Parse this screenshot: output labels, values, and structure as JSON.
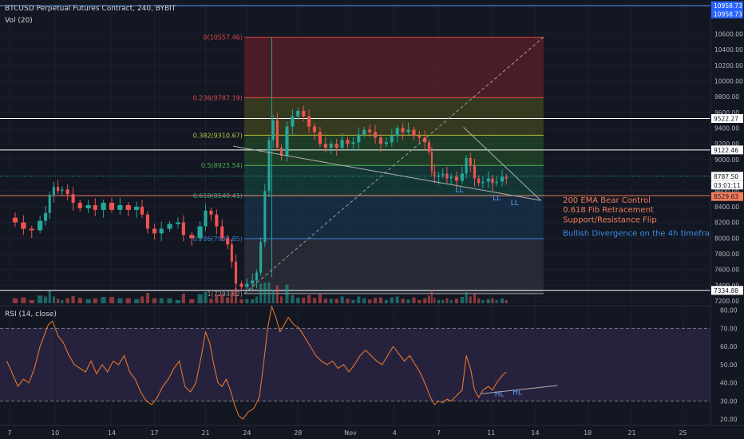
{
  "header": {
    "title": "BTCUSD Perpetual Futures Contract, 240, BYBIT",
    "volume_label": "Vol (20)",
    "rsi_label": "RSI (14, close)"
  },
  "chart_data": {
    "type": "candlestick",
    "price_axis": {
      "min": 7150,
      "max": 10980,
      "ticks": [
        7200,
        7400,
        7600,
        7800,
        8000,
        8200,
        8400,
        8600,
        8800,
        9000,
        9200,
        9400,
        9600,
        9800,
        10000,
        10200,
        10400,
        10600
      ]
    },
    "rsi_axis": {
      "min": 17,
      "max": 82,
      "ticks": [
        20,
        30,
        40,
        50,
        60,
        70,
        80
      ],
      "overbought": 70,
      "oversold": 30
    },
    "x_axis": {
      "labels": [
        {
          "text": "7",
          "t": 0.2
        },
        {
          "text": "10",
          "t": 3.5
        },
        {
          "text": "14",
          "t": 7.6
        },
        {
          "text": "17",
          "t": 10.7
        },
        {
          "text": "21",
          "t": 14.4
        },
        {
          "text": "24",
          "t": 17.4
        },
        {
          "text": "28",
          "t": 21.1
        },
        {
          "text": "Nov",
          "t": 24.9
        },
        {
          "text": "4",
          "t": 28.1
        },
        {
          "text": "7",
          "t": 31.3
        },
        {
          "text": "11",
          "t": 35.1
        },
        {
          "text": "14",
          "t": 38.3
        },
        {
          "text": "18",
          "t": 42.1
        },
        {
          "text": "21",
          "t": 45.3
        },
        {
          "text": "25",
          "t": 49.0
        }
      ]
    },
    "horizontal_levels": [
      {
        "price": 10958.73,
        "label": "10958.73",
        "color": "#5b9cf6"
      },
      {
        "price": 9522.27,
        "label": "9522.27",
        "color": "#ffffff"
      },
      {
        "price": 9122.46,
        "label": "9122.46",
        "color": "#ffffff"
      },
      {
        "price": 7334.88,
        "label": "7334.88",
        "color": "#ffffff"
      }
    ],
    "price_markers": [
      {
        "price": 8787.5,
        "label": "8787.50",
        "bg": "#ffffff",
        "fg": "#131722"
      },
      {
        "price": 8630,
        "label": "03:01:11",
        "bg": "#ffffff",
        "fg": "#131722"
      },
      {
        "price": 8529.63,
        "label": "8529.63",
        "bg": "#f57c5a",
        "fg": "#131722"
      }
    ],
    "fibonacci": {
      "start_t": 17.2,
      "end_t": 38.9,
      "levels": [
        {
          "ratio": "0",
          "price": 10557.46,
          "label": "0(10557.46)",
          "color": "#e04848",
          "fill": "rgba(120,32,40,0.55)"
        },
        {
          "ratio": "0.236",
          "price": 9787.19,
          "label": "0.236(9787.19)",
          "color": "#e04848",
          "fill": "rgba(80,85,30,0.55)"
        },
        {
          "ratio": "0.382",
          "price": 9310.67,
          "label": "0.382(9310.67)",
          "color": "#b8c23a",
          "fill": "rgba(40,90,40,0.55)"
        },
        {
          "ratio": "0.5",
          "price": 8925.54,
          "label": "0.5(8925.54)",
          "color": "#4caf50",
          "fill": "rgba(20,80,70,0.55)"
        },
        {
          "ratio": "0.618",
          "price": 8540.41,
          "label": "0.618(8540.41)",
          "color": "#26a69a",
          "fill": "rgba(25,60,90,0.55)"
        },
        {
          "ratio": "0.786",
          "price": 7992.85,
          "label": "0.786(7992.85)",
          "color": "#3a7bd5",
          "fill": "rgba(55,58,70,0.55)"
        },
        {
          "ratio": "1",
          "price": 7293.62,
          "label": "1(7293.62)",
          "color": "#9e9e9e",
          "fill": "none"
        }
      ]
    },
    "ema_line": {
      "price": 8540.41,
      "color": "#f57c5a"
    },
    "trendlines": [
      {
        "kind": "support",
        "t1": 16.4,
        "p1": 9170,
        "t2": 38.7,
        "p2": 8480,
        "color": "#b0b0b0",
        "style": "solid"
      },
      {
        "kind": "wedge-top",
        "t1": 33.1,
        "p1": 9410,
        "t2": 38.7,
        "p2": 8480,
        "color": "#b0b0b0",
        "style": "solid"
      },
      {
        "kind": "fib-diagonal",
        "t1": 17.2,
        "p1": 7293.62,
        "t2": 38.9,
        "p2": 10557.46,
        "color": "#9e9e9e",
        "style": "dashed"
      }
    ],
    "rsi_trendline": {
      "t1": 34.4,
      "r1": 34,
      "t2": 39.9,
      "r2": 38.5,
      "color": "#b0b0b0"
    },
    "annotations": [
      {
        "text": "LL",
        "t": 32.8,
        "price": 8580,
        "panel": "price",
        "color": "#5b9cf6"
      },
      {
        "text": "LL",
        "t": 35.5,
        "price": 8480,
        "panel": "price",
        "color": "#5b9cf6"
      },
      {
        "text": "LL",
        "t": 36.8,
        "price": 8420,
        "panel": "price",
        "color": "#5b9cf6"
      },
      {
        "text": "HL",
        "t": 35.7,
        "value": 32.5,
        "panel": "rsi",
        "color": "#5b9cf6"
      },
      {
        "text": "HL",
        "t": 37.0,
        "value": 33.5,
        "panel": "rsi",
        "color": "#5b9cf6"
      }
    ],
    "notes": [
      {
        "text": "200 EMA Bear Control",
        "t": 40.3,
        "price": 8450,
        "color": "#f57c5a"
      },
      {
        "text": "0.618 Fib Retracement",
        "t": 40.3,
        "price": 8330,
        "color": "#f57c5a"
      },
      {
        "text": "Support/Resistance Flip",
        "t": 40.3,
        "price": 8200,
        "color": "#f57c5a"
      },
      {
        "text": "Bullish Divergence on the 4h timefra",
        "t": 40.3,
        "price": 8030,
        "color": "#3a8ee6"
      }
    ],
    "series": [
      {
        "name": "",
        "kind": "price-close",
        "points": [
          [
            0.0,
            8260
          ],
          [
            0.6,
            8200
          ],
          [
            1.2,
            8120
          ],
          [
            1.8,
            8100
          ],
          [
            2.4,
            8220
          ],
          [
            2.8,
            8320
          ],
          [
            3.1,
            8550
          ],
          [
            3.4,
            8650
          ],
          [
            3.7,
            8600
          ],
          [
            4.0,
            8620
          ],
          [
            4.4,
            8560
          ],
          [
            4.8,
            8450
          ],
          [
            5.3,
            8380
          ],
          [
            5.9,
            8420
          ],
          [
            6.4,
            8360
          ],
          [
            7.0,
            8450
          ],
          [
            7.6,
            8360
          ],
          [
            8.2,
            8420
          ],
          [
            8.8,
            8360
          ],
          [
            9.4,
            8400
          ],
          [
            9.8,
            8300
          ],
          [
            10.2,
            8120
          ],
          [
            10.7,
            8060
          ],
          [
            11.2,
            8120
          ],
          [
            11.8,
            8180
          ],
          [
            12.4,
            8200
          ],
          [
            12.8,
            8040
          ],
          [
            13.4,
            8000
          ],
          [
            14.0,
            8150
          ],
          [
            14.4,
            8350
          ],
          [
            14.8,
            8300
          ],
          [
            15.2,
            8150
          ],
          [
            15.6,
            8000
          ],
          [
            16.0,
            7920
          ],
          [
            16.3,
            7700
          ],
          [
            16.6,
            7420
          ],
          [
            17.0,
            7380
          ],
          [
            17.4,
            7420
          ],
          [
            17.8,
            7460
          ],
          [
            18.1,
            7560
          ],
          [
            18.4,
            7950
          ],
          [
            18.7,
            8600
          ],
          [
            19.0,
            9250
          ],
          [
            19.3,
            9500
          ],
          [
            19.6,
            9150
          ],
          [
            19.9,
            9050
          ],
          [
            20.3,
            9420
          ],
          [
            20.7,
            9550
          ],
          [
            21.1,
            9620
          ],
          [
            21.5,
            9550
          ],
          [
            21.9,
            9420
          ],
          [
            22.3,
            9350
          ],
          [
            22.7,
            9200
          ],
          [
            23.1,
            9150
          ],
          [
            23.5,
            9200
          ],
          [
            23.9,
            9150
          ],
          [
            24.3,
            9250
          ],
          [
            24.7,
            9200
          ],
          [
            25.1,
            9220
          ],
          [
            25.5,
            9320
          ],
          [
            25.9,
            9380
          ],
          [
            26.3,
            9350
          ],
          [
            26.7,
            9280
          ],
          [
            27.1,
            9200
          ],
          [
            27.5,
            9220
          ],
          [
            27.9,
            9300
          ],
          [
            28.3,
            9400
          ],
          [
            28.7,
            9350
          ],
          [
            29.1,
            9380
          ],
          [
            29.5,
            9300
          ],
          [
            29.9,
            9280
          ],
          [
            30.3,
            9220
          ],
          [
            30.6,
            9100
          ],
          [
            30.8,
            8850
          ],
          [
            31.0,
            8780
          ],
          [
            31.3,
            8800
          ],
          [
            31.6,
            8820
          ],
          [
            31.9,
            8760
          ],
          [
            32.2,
            8780
          ],
          [
            32.6,
            8730
          ],
          [
            33.0,
            8820
          ],
          [
            33.3,
            9020
          ],
          [
            33.6,
            8920
          ],
          [
            33.9,
            8760
          ],
          [
            34.2,
            8700
          ],
          [
            34.5,
            8720
          ],
          [
            34.9,
            8760
          ],
          [
            35.2,
            8700
          ],
          [
            35.5,
            8720
          ],
          [
            35.9,
            8780
          ],
          [
            36.2,
            8760
          ]
        ]
      },
      {
        "name": "",
        "kind": "rsi",
        "points": [
          [
            0.0,
            52
          ],
          [
            0.4,
            45
          ],
          [
            0.8,
            38
          ],
          [
            1.2,
            42
          ],
          [
            1.6,
            40
          ],
          [
            2.0,
            48
          ],
          [
            2.4,
            60
          ],
          [
            2.7,
            66
          ],
          [
            3.0,
            72
          ],
          [
            3.3,
            74
          ],
          [
            3.7,
            66
          ],
          [
            4.1,
            62
          ],
          [
            4.5,
            55
          ],
          [
            4.9,
            50
          ],
          [
            5.3,
            48
          ],
          [
            5.7,
            46
          ],
          [
            6.1,
            52
          ],
          [
            6.5,
            45
          ],
          [
            6.9,
            50
          ],
          [
            7.3,
            46
          ],
          [
            7.7,
            52
          ],
          [
            8.1,
            50
          ],
          [
            8.5,
            55
          ],
          [
            8.9,
            46
          ],
          [
            9.3,
            42
          ],
          [
            9.7,
            35
          ],
          [
            10.1,
            30
          ],
          [
            10.5,
            28
          ],
          [
            10.9,
            32
          ],
          [
            11.3,
            38
          ],
          [
            11.7,
            42
          ],
          [
            12.1,
            48
          ],
          [
            12.5,
            52
          ],
          [
            12.9,
            38
          ],
          [
            13.3,
            35
          ],
          [
            13.7,
            40
          ],
          [
            14.1,
            55
          ],
          [
            14.4,
            68
          ],
          [
            14.7,
            62
          ],
          [
            15.0,
            50
          ],
          [
            15.3,
            40
          ],
          [
            15.6,
            38
          ],
          [
            15.9,
            42
          ],
          [
            16.2,
            36
          ],
          [
            16.5,
            28
          ],
          [
            16.8,
            22
          ],
          [
            17.1,
            20
          ],
          [
            17.5,
            24
          ],
          [
            17.9,
            26
          ],
          [
            18.3,
            32
          ],
          [
            18.6,
            50
          ],
          [
            18.9,
            70
          ],
          [
            19.2,
            82
          ],
          [
            19.5,
            76
          ],
          [
            19.8,
            68
          ],
          [
            20.1,
            72
          ],
          [
            20.4,
            76
          ],
          [
            20.8,
            72
          ],
          [
            21.2,
            70
          ],
          [
            21.6,
            65
          ],
          [
            22.0,
            60
          ],
          [
            22.4,
            55
          ],
          [
            22.8,
            52
          ],
          [
            23.2,
            50
          ],
          [
            23.6,
            52
          ],
          [
            24.0,
            48
          ],
          [
            24.4,
            50
          ],
          [
            24.8,
            46
          ],
          [
            25.2,
            50
          ],
          [
            25.6,
            55
          ],
          [
            26.0,
            58
          ],
          [
            26.4,
            55
          ],
          [
            26.8,
            52
          ],
          [
            27.2,
            50
          ],
          [
            27.6,
            55
          ],
          [
            28.0,
            60
          ],
          [
            28.4,
            56
          ],
          [
            28.8,
            52
          ],
          [
            29.2,
            55
          ],
          [
            29.6,
            50
          ],
          [
            30.0,
            45
          ],
          [
            30.4,
            38
          ],
          [
            30.7,
            32
          ],
          [
            31.0,
            28
          ],
          [
            31.3,
            30
          ],
          [
            31.6,
            29
          ],
          [
            31.9,
            31
          ],
          [
            32.2,
            30
          ],
          [
            32.6,
            33
          ],
          [
            33.0,
            36
          ],
          [
            33.3,
            55
          ],
          [
            33.6,
            48
          ],
          [
            33.9,
            36
          ],
          [
            34.2,
            32
          ],
          [
            34.5,
            36
          ],
          [
            34.9,
            38
          ],
          [
            35.2,
            36
          ],
          [
            35.5,
            40
          ],
          [
            35.9,
            44
          ],
          [
            36.2,
            46
          ]
        ]
      }
    ]
  }
}
